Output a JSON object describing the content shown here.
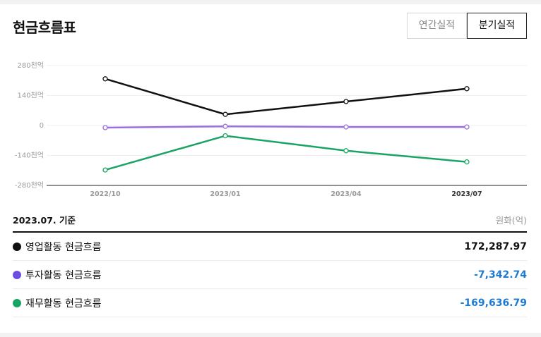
{
  "header": {
    "title": "현금흐름표",
    "tabs": [
      {
        "label": "연간실적",
        "active": false
      },
      {
        "label": "분기실적",
        "active": true
      }
    ]
  },
  "chart_data": {
    "type": "line",
    "x": [
      "2022/10",
      "2023/01",
      "2023/04",
      "2023/07"
    ],
    "y_ticks": [
      "280천억",
      "140천억",
      "0",
      "-140천억",
      "-280천억"
    ],
    "ylim": [
      -280,
      280
    ],
    "y_unit": "천억",
    "grid": true,
    "legend": "none",
    "series": [
      {
        "key": "operating",
        "color": "#111111",
        "values": [
          218,
          52,
          112,
          172
        ]
      },
      {
        "key": "investing",
        "color": "#9b6ee0",
        "values": [
          -10,
          -4,
          -7,
          -7
        ]
      },
      {
        "key": "financing",
        "color": "#1aa463",
        "values": [
          -208,
          -48,
          -118,
          -170
        ]
      }
    ]
  },
  "summary": {
    "date": "2023.07. 기준",
    "unit": "원화(억)",
    "rows": [
      {
        "label": "영업활동 현금흐름",
        "value": "172,287.97",
        "dot": "#111111",
        "value_color": "#111111"
      },
      {
        "label": "투자활동 현금흐름",
        "value": "-7,342.74",
        "dot": "#6d4fe0",
        "value_color": "#1f7bd1"
      },
      {
        "label": "재무활동 현금흐름",
        "value": "-169,636.79",
        "dot": "#1aa463",
        "value_color": "#1f7bd1"
      }
    ]
  }
}
